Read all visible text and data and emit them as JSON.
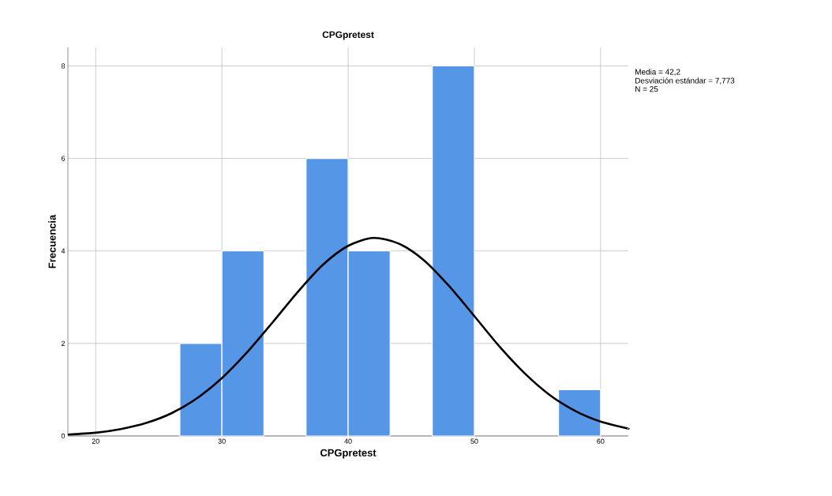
{
  "chart_data": {
    "type": "histogram",
    "title": "CPGpretest",
    "xlabel": "CPGpretest",
    "ylabel": "Frecuencia",
    "annotations": [
      "Media = 42,2",
      "Desviación estándar = 7,773",
      "N = 25"
    ],
    "xlim": [
      17.8,
      62.2
    ],
    "ylim": [
      0,
      8.4
    ],
    "xticks": [
      20,
      30,
      40,
      50,
      60
    ],
    "yticks": [
      0,
      2,
      4,
      6,
      8
    ],
    "grid": true,
    "series": [
      {
        "color": "#5596e6",
        "bins": [
          26.67,
          30,
          33.33,
          36.67,
          40,
          43.33,
          46.67,
          50,
          53.33,
          56.67,
          60
        ],
        "values": [
          2,
          4,
          0,
          6,
          4,
          0,
          8,
          0,
          0,
          1
        ]
      },
      {
        "type": "line",
        "color": "#000000",
        "x": [
          17.8,
          20,
          22,
          24,
          26,
          28,
          30,
          32,
          34,
          36,
          38,
          40,
          42,
          44,
          46,
          48,
          50,
          52,
          54,
          56,
          58,
          60,
          62,
          62.2
        ],
        "values": [
          0.03,
          0.07,
          0.15,
          0.28,
          0.49,
          0.81,
          1.25,
          1.81,
          2.45,
          3.11,
          3.7,
          4.11,
          4.28,
          4.16,
          3.8,
          3.24,
          2.59,
          1.93,
          1.35,
          0.88,
          0.54,
          0.31,
          0.17,
          0.16
        ]
      }
    ]
  }
}
